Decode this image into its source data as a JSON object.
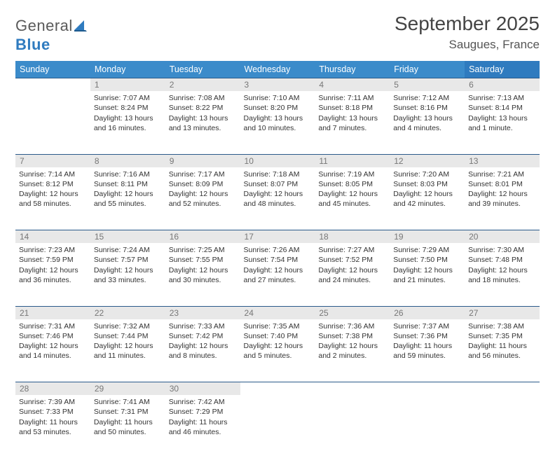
{
  "brand": {
    "part1": "General",
    "part2": "Blue"
  },
  "title": "September 2025",
  "location": "Saugues, France",
  "header_color": "#3b8bca",
  "header_color_sat": "#2f7bbf",
  "daynum_bg": "#e8e8e8",
  "daynum_color": "#777777",
  "row_border_color": "#2a5a8a",
  "text_color": "#333333",
  "background_color": "#ffffff",
  "fonts": {
    "title_size": 28,
    "location_size": 17,
    "header_size": 12.5,
    "body_size": 10.5,
    "daynum_size": 12
  },
  "day_headers": [
    "Sunday",
    "Monday",
    "Tuesday",
    "Wednesday",
    "Thursday",
    "Friday",
    "Saturday"
  ],
  "weeks": [
    {
      "nums": [
        "",
        "1",
        "2",
        "3",
        "4",
        "5",
        "6"
      ],
      "cells": [
        null,
        {
          "sunrise": "Sunrise: 7:07 AM",
          "sunset": "Sunset: 8:24 PM",
          "daylight": "Daylight: 13 hours and 16 minutes."
        },
        {
          "sunrise": "Sunrise: 7:08 AM",
          "sunset": "Sunset: 8:22 PM",
          "daylight": "Daylight: 13 hours and 13 minutes."
        },
        {
          "sunrise": "Sunrise: 7:10 AM",
          "sunset": "Sunset: 8:20 PM",
          "daylight": "Daylight: 13 hours and 10 minutes."
        },
        {
          "sunrise": "Sunrise: 7:11 AM",
          "sunset": "Sunset: 8:18 PM",
          "daylight": "Daylight: 13 hours and 7 minutes."
        },
        {
          "sunrise": "Sunrise: 7:12 AM",
          "sunset": "Sunset: 8:16 PM",
          "daylight": "Daylight: 13 hours and 4 minutes."
        },
        {
          "sunrise": "Sunrise: 7:13 AM",
          "sunset": "Sunset: 8:14 PM",
          "daylight": "Daylight: 13 hours and 1 minute."
        }
      ]
    },
    {
      "nums": [
        "7",
        "8",
        "9",
        "10",
        "11",
        "12",
        "13"
      ],
      "cells": [
        {
          "sunrise": "Sunrise: 7:14 AM",
          "sunset": "Sunset: 8:12 PM",
          "daylight": "Daylight: 12 hours and 58 minutes."
        },
        {
          "sunrise": "Sunrise: 7:16 AM",
          "sunset": "Sunset: 8:11 PM",
          "daylight": "Daylight: 12 hours and 55 minutes."
        },
        {
          "sunrise": "Sunrise: 7:17 AM",
          "sunset": "Sunset: 8:09 PM",
          "daylight": "Daylight: 12 hours and 52 minutes."
        },
        {
          "sunrise": "Sunrise: 7:18 AM",
          "sunset": "Sunset: 8:07 PM",
          "daylight": "Daylight: 12 hours and 48 minutes."
        },
        {
          "sunrise": "Sunrise: 7:19 AM",
          "sunset": "Sunset: 8:05 PM",
          "daylight": "Daylight: 12 hours and 45 minutes."
        },
        {
          "sunrise": "Sunrise: 7:20 AM",
          "sunset": "Sunset: 8:03 PM",
          "daylight": "Daylight: 12 hours and 42 minutes."
        },
        {
          "sunrise": "Sunrise: 7:21 AM",
          "sunset": "Sunset: 8:01 PM",
          "daylight": "Daylight: 12 hours and 39 minutes."
        }
      ]
    },
    {
      "nums": [
        "14",
        "15",
        "16",
        "17",
        "18",
        "19",
        "20"
      ],
      "cells": [
        {
          "sunrise": "Sunrise: 7:23 AM",
          "sunset": "Sunset: 7:59 PM",
          "daylight": "Daylight: 12 hours and 36 minutes."
        },
        {
          "sunrise": "Sunrise: 7:24 AM",
          "sunset": "Sunset: 7:57 PM",
          "daylight": "Daylight: 12 hours and 33 minutes."
        },
        {
          "sunrise": "Sunrise: 7:25 AM",
          "sunset": "Sunset: 7:55 PM",
          "daylight": "Daylight: 12 hours and 30 minutes."
        },
        {
          "sunrise": "Sunrise: 7:26 AM",
          "sunset": "Sunset: 7:54 PM",
          "daylight": "Daylight: 12 hours and 27 minutes."
        },
        {
          "sunrise": "Sunrise: 7:27 AM",
          "sunset": "Sunset: 7:52 PM",
          "daylight": "Daylight: 12 hours and 24 minutes."
        },
        {
          "sunrise": "Sunrise: 7:29 AM",
          "sunset": "Sunset: 7:50 PM",
          "daylight": "Daylight: 12 hours and 21 minutes."
        },
        {
          "sunrise": "Sunrise: 7:30 AM",
          "sunset": "Sunset: 7:48 PM",
          "daylight": "Daylight: 12 hours and 18 minutes."
        }
      ]
    },
    {
      "nums": [
        "21",
        "22",
        "23",
        "24",
        "25",
        "26",
        "27"
      ],
      "cells": [
        {
          "sunrise": "Sunrise: 7:31 AM",
          "sunset": "Sunset: 7:46 PM",
          "daylight": "Daylight: 12 hours and 14 minutes."
        },
        {
          "sunrise": "Sunrise: 7:32 AM",
          "sunset": "Sunset: 7:44 PM",
          "daylight": "Daylight: 12 hours and 11 minutes."
        },
        {
          "sunrise": "Sunrise: 7:33 AM",
          "sunset": "Sunset: 7:42 PM",
          "daylight": "Daylight: 12 hours and 8 minutes."
        },
        {
          "sunrise": "Sunrise: 7:35 AM",
          "sunset": "Sunset: 7:40 PM",
          "daylight": "Daylight: 12 hours and 5 minutes."
        },
        {
          "sunrise": "Sunrise: 7:36 AM",
          "sunset": "Sunset: 7:38 PM",
          "daylight": "Daylight: 12 hours and 2 minutes."
        },
        {
          "sunrise": "Sunrise: 7:37 AM",
          "sunset": "Sunset: 7:36 PM",
          "daylight": "Daylight: 11 hours and 59 minutes."
        },
        {
          "sunrise": "Sunrise: 7:38 AM",
          "sunset": "Sunset: 7:35 PM",
          "daylight": "Daylight: 11 hours and 56 minutes."
        }
      ]
    },
    {
      "nums": [
        "28",
        "29",
        "30",
        "",
        "",
        "",
        ""
      ],
      "cells": [
        {
          "sunrise": "Sunrise: 7:39 AM",
          "sunset": "Sunset: 7:33 PM",
          "daylight": "Daylight: 11 hours and 53 minutes."
        },
        {
          "sunrise": "Sunrise: 7:41 AM",
          "sunset": "Sunset: 7:31 PM",
          "daylight": "Daylight: 11 hours and 50 minutes."
        },
        {
          "sunrise": "Sunrise: 7:42 AM",
          "sunset": "Sunset: 7:29 PM",
          "daylight": "Daylight: 11 hours and 46 minutes."
        },
        null,
        null,
        null,
        null
      ]
    }
  ]
}
